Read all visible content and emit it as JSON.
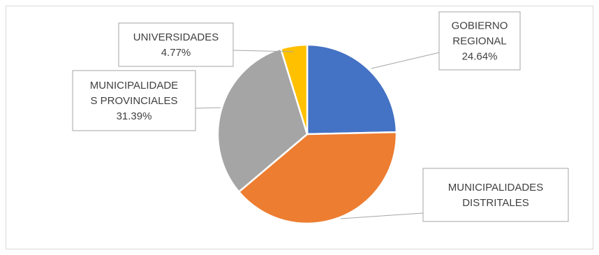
{
  "chart_data": {
    "type": "pie",
    "title": "",
    "slices": [
      {
        "label_lines": [
          "GOBIERNO",
          "REGIONAL"
        ],
        "percent_label": "24.64%",
        "value": 24.64,
        "color": "#4472C4"
      },
      {
        "label_lines": [
          "MUNICIPALIDADES",
          "DISTRITALES"
        ],
        "percent_label": "",
        "value": 39.2,
        "color": "#ED7D31"
      },
      {
        "label_lines": [
          "MUNICIPALIDADE",
          "S PROVINCIALES"
        ],
        "percent_label": "31.39%",
        "value": 31.39,
        "color": "#A5A5A5"
      },
      {
        "label_lines": [
          "UNIVERSIDADES"
        ],
        "percent_label": "4.77%",
        "value": 4.77,
        "color": "#FFC000"
      }
    ],
    "legend": "none",
    "data_labels": "callouts"
  }
}
